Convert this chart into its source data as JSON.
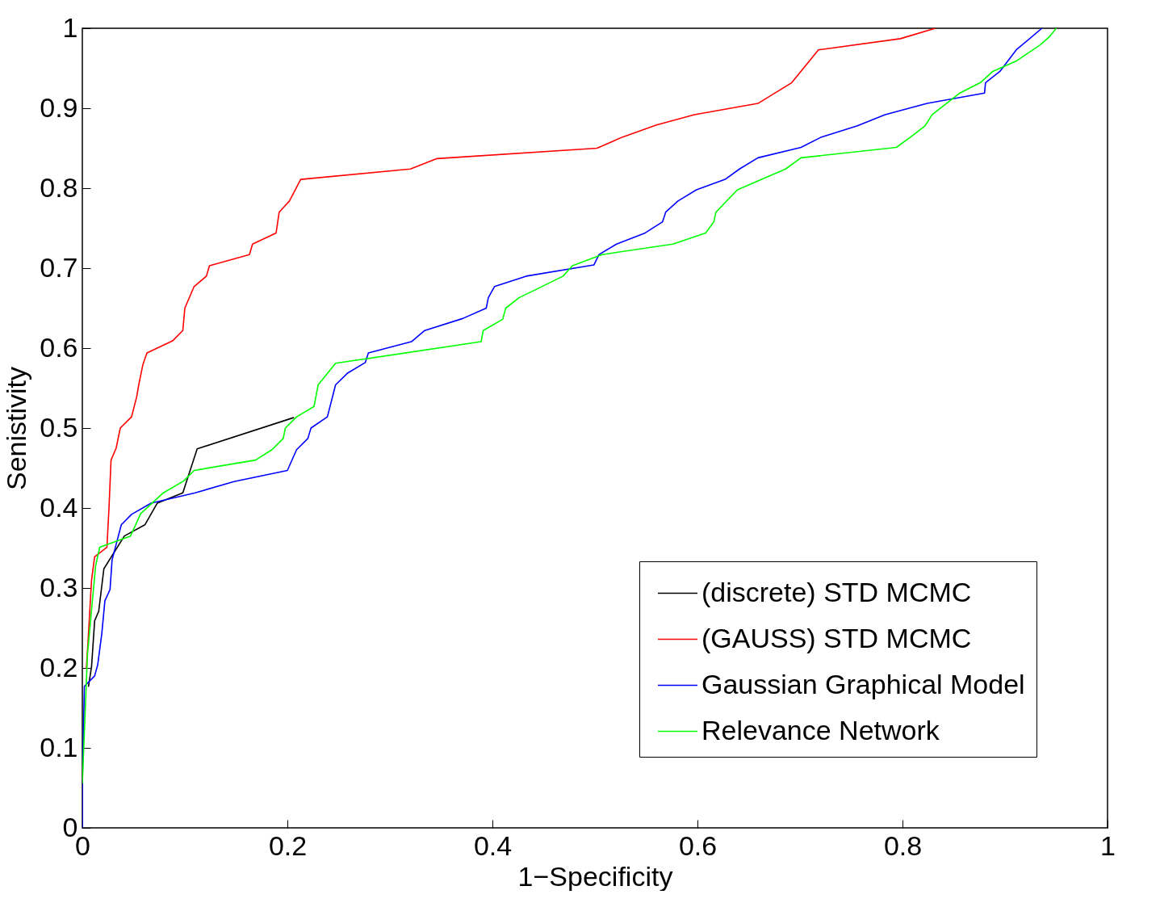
{
  "chart_data": {
    "type": "line",
    "xlabel": "1−Specificity",
    "ylabel": "Senistivity",
    "xlim": [
      0,
      1
    ],
    "ylim": [
      0,
      1
    ],
    "xticks": [
      0,
      0.2,
      0.4,
      0.6,
      0.8,
      1
    ],
    "yticks": [
      0,
      0.1,
      0.2,
      0.3,
      0.4,
      0.5,
      0.6,
      0.7,
      0.8,
      0.9,
      1
    ],
    "grid": false,
    "legend": "bottom right",
    "marker": "none",
    "line_style": "solid",
    "series": [
      {
        "name": "(discrete) STD MCMC",
        "color": "#000000",
        "x": [
          0.006,
          0.009,
          0.012,
          0.016,
          0.021,
          0.041,
          0.061,
          0.073,
          0.098,
          0.112,
          0.206
        ],
        "values": [
          0.177,
          0.202,
          0.259,
          0.271,
          0.324,
          0.365,
          0.379,
          0.406,
          0.419,
          0.474,
          0.513
        ]
      },
      {
        "name": "(GAUSS) STD MCMC",
        "color": "#ff0000",
        "x": [
          0.004,
          0.005,
          0.009,
          0.012,
          0.024,
          0.026,
          0.028,
          0.033,
          0.037,
          0.048,
          0.053,
          0.055,
          0.059,
          0.063,
          0.088,
          0.098,
          0.1,
          0.109,
          0.121,
          0.124,
          0.163,
          0.166,
          0.189,
          0.192,
          0.202,
          0.213,
          0.32,
          0.346,
          0.502,
          0.527,
          0.56,
          0.597,
          0.659,
          0.692,
          0.718,
          0.798,
          0.832
        ],
        "values": [
          0.2,
          0.221,
          0.31,
          0.339,
          0.351,
          0.4,
          0.46,
          0.475,
          0.5,
          0.514,
          0.539,
          0.554,
          0.579,
          0.594,
          0.609,
          0.622,
          0.65,
          0.677,
          0.69,
          0.703,
          0.717,
          0.73,
          0.744,
          0.77,
          0.784,
          0.811,
          0.824,
          0.837,
          0.85,
          0.864,
          0.879,
          0.892,
          0.906,
          0.932,
          0.973,
          0.987,
          1.0
        ]
      },
      {
        "name": "Gaussian Graphical Model",
        "color": "#0000ff",
        "x": [
          0,
          0,
          0.002,
          0.012,
          0.015,
          0.019,
          0.022,
          0.027,
          0.029,
          0.038,
          0.048,
          0.067,
          0.11,
          0.148,
          0.2,
          0.209,
          0.22,
          0.223,
          0.239,
          0.247,
          0.259,
          0.276,
          0.279,
          0.321,
          0.334,
          0.371,
          0.394,
          0.396,
          0.402,
          0.433,
          0.499,
          0.504,
          0.521,
          0.549,
          0.566,
          0.569,
          0.581,
          0.599,
          0.627,
          0.641,
          0.659,
          0.701,
          0.721,
          0.756,
          0.783,
          0.824,
          0.88,
          0.881,
          0.895,
          0.911,
          0.936
        ],
        "values": [
          0,
          0.054,
          0.177,
          0.19,
          0.204,
          0.243,
          0.284,
          0.298,
          0.335,
          0.379,
          0.392,
          0.406,
          0.419,
          0.433,
          0.447,
          0.473,
          0.487,
          0.5,
          0.514,
          0.554,
          0.569,
          0.582,
          0.594,
          0.608,
          0.622,
          0.637,
          0.65,
          0.663,
          0.677,
          0.69,
          0.704,
          0.717,
          0.73,
          0.744,
          0.758,
          0.77,
          0.784,
          0.798,
          0.811,
          0.824,
          0.838,
          0.851,
          0.864,
          0.878,
          0.892,
          0.906,
          0.919,
          0.932,
          0.946,
          0.973,
          1.0
        ]
      },
      {
        "name": "Relevance Network",
        "color": "#00ff00",
        "x": [
          0,
          0.005,
          0.013,
          0.017,
          0.047,
          0.057,
          0.079,
          0.099,
          0.109,
          0.169,
          0.185,
          0.196,
          0.198,
          0.209,
          0.226,
          0.23,
          0.247,
          0.389,
          0.391,
          0.41,
          0.413,
          0.426,
          0.469,
          0.478,
          0.507,
          0.576,
          0.608,
          0.616,
          0.618,
          0.639,
          0.686,
          0.701,
          0.794,
          0.808,
          0.822,
          0.829,
          0.856,
          0.876,
          0.888,
          0.911,
          0.934,
          0.943,
          0.95
        ],
        "values": [
          0.056,
          0.217,
          0.328,
          0.351,
          0.365,
          0.393,
          0.419,
          0.434,
          0.447,
          0.46,
          0.473,
          0.487,
          0.5,
          0.514,
          0.527,
          0.554,
          0.581,
          0.608,
          0.622,
          0.636,
          0.65,
          0.663,
          0.69,
          0.703,
          0.717,
          0.73,
          0.744,
          0.758,
          0.77,
          0.798,
          0.824,
          0.838,
          0.851,
          0.864,
          0.878,
          0.892,
          0.919,
          0.932,
          0.946,
          0.959,
          0.979,
          0.989,
          1.0
        ]
      }
    ]
  }
}
